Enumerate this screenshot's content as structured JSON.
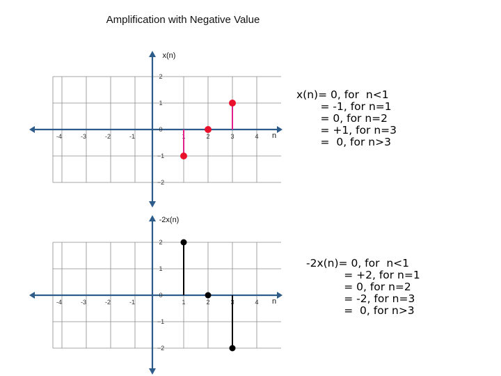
{
  "title": "Amplification with Negative Value",
  "colors": {
    "axis": "#2e5c8a",
    "grid": "#8a8a8a",
    "top_stem": "#e0218a",
    "top_marker": "#e8102a",
    "bottom_stem": "#000000",
    "bottom_marker": "#000000"
  },
  "top_plot": {
    "ylabel": "x(n)",
    "xlabel": "n",
    "x_ticks": [
      "-4",
      "-3",
      "-2",
      "-1",
      "",
      "1",
      "2",
      "3",
      "4"
    ],
    "y_ticks": [
      "2",
      "1",
      "0",
      "−1",
      "−2"
    ],
    "definition": [
      "x(n)= 0, for  n<1",
      "       = -1, for n=1",
      "       = 0, for n=2",
      "       = +1, for n=3",
      "       =  0, for n>3"
    ]
  },
  "bottom_plot": {
    "ylabel": "-2x(n)",
    "xlabel": "n",
    "x_ticks": [
      "-4",
      "-3",
      "-2",
      "-1",
      "",
      "1",
      "2",
      "3",
      "4"
    ],
    "y_ticks": [
      "2",
      "1",
      "0",
      "−1",
      "−2"
    ],
    "definition": [
      "-2x(n)= 0, for  n<1",
      "           = +2, for n=1",
      "           = 0, for n=2",
      "           = -2, for n=3",
      "           =  0, for n>3"
    ]
  },
  "chart_data": [
    {
      "type": "scatter",
      "title": "",
      "xlabel": "n",
      "ylabel": "x(n)",
      "x": [
        1,
        2,
        3
      ],
      "y": [
        -1,
        0,
        1
      ],
      "xlim": [
        -4,
        4
      ],
      "ylim": [
        -2,
        2
      ],
      "grid": true
    },
    {
      "type": "scatter",
      "title": "",
      "xlabel": "n",
      "ylabel": "-2x(n)",
      "x": [
        1,
        2,
        3
      ],
      "y": [
        2,
        0,
        -2
      ],
      "xlim": [
        -4,
        4
      ],
      "ylim": [
        -2,
        2
      ],
      "grid": true
    }
  ]
}
